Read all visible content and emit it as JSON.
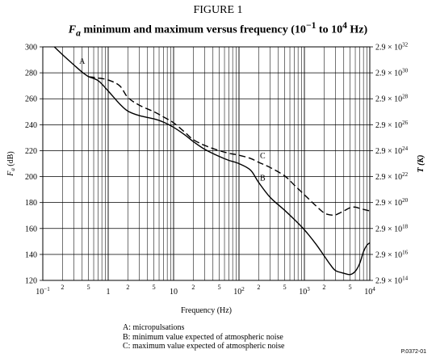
{
  "figure_label": "FIGURE 1",
  "title_parts": {
    "sym": "F",
    "sub": "a",
    "pre": " minimum and maximum versus frequency (10",
    "exp1": "−1",
    "mid": " to 10",
    "exp2": "4",
    "post": " Hz)"
  },
  "legend": [
    "A:  micropulsations",
    "B:  minimum value expected of atmospheric noise",
    "C:  maximum value expected of atmospheric noise"
  ],
  "reference": "P.0372-01",
  "chart_data": {
    "type": "line",
    "title": "Fa minimum and maximum versus frequency (10^-1 to 10^4 Hz)",
    "xlabel": "Frequency (Hz)",
    "ylabel_sym": "F",
    "ylabel_sub": "a",
    "ylabel_unit": " (dB)",
    "y2label": "T (K)",
    "x_scale": "log",
    "xlim": [
      0.1,
      10000
    ],
    "ylim": [
      120,
      300
    ],
    "grid": true,
    "x_major_ticks": [
      {
        "v": 0.1,
        "base": "10",
        "exp": "−1"
      },
      {
        "v": 1,
        "base": "1",
        "exp": ""
      },
      {
        "v": 10,
        "base": "10",
        "exp": ""
      },
      {
        "v": 100,
        "base": "10",
        "exp": "2"
      },
      {
        "v": 1000,
        "base": "10",
        "exp": "3"
      },
      {
        "v": 10000,
        "base": "10",
        "exp": "4"
      }
    ],
    "x_minor_labels": [
      "2",
      "5"
    ],
    "y_ticks": [
      120,
      140,
      160,
      180,
      200,
      220,
      240,
      260,
      280,
      300
    ],
    "y2_ticks": [
      {
        "at": 120,
        "exp": "14"
      },
      {
        "at": 140,
        "exp": "16"
      },
      {
        "at": 160,
        "exp": "18"
      },
      {
        "at": 180,
        "exp": "20"
      },
      {
        "at": 200,
        "exp": "22"
      },
      {
        "at": 220,
        "exp": "24"
      },
      {
        "at": 240,
        "exp": "26"
      },
      {
        "at": 260,
        "exp": "28"
      },
      {
        "at": 280,
        "exp": "30"
      },
      {
        "at": 300,
        "exp": "32"
      }
    ],
    "y2_mantissa": "2.9 × 10",
    "series": [
      {
        "name": "A",
        "style": "solid",
        "x": [
          0.15,
          0.2,
          0.3,
          0.4,
          0.5
        ],
        "y": [
          300,
          294,
          286,
          280.5,
          277
        ]
      },
      {
        "name": "B",
        "style": "solid",
        "x": [
          0.5,
          0.7,
          1,
          1.5,
          2,
          3,
          5,
          7,
          10,
          15,
          20,
          30,
          50,
          70,
          100,
          150,
          200,
          300,
          500,
          700,
          1000,
          1500,
          2000,
          2500,
          3000,
          4000,
          5000,
          6000,
          7000,
          8000,
          9000,
          10000
        ],
        "y": [
          277,
          274,
          266,
          256,
          250.5,
          247,
          244.5,
          242,
          238,
          232,
          227,
          221,
          215.5,
          212.5,
          210,
          205,
          195.5,
          184,
          174,
          167,
          159,
          148,
          139,
          132,
          127.5,
          125.5,
          124.5,
          127,
          133,
          142,
          147,
          149
        ]
      },
      {
        "name": "C",
        "style": "dashed",
        "x": [
          0.5,
          0.7,
          1,
          1.5,
          2,
          3,
          5,
          7,
          10,
          15,
          20,
          30,
          50,
          70,
          100,
          150,
          200,
          300,
          500,
          700,
          1000,
          1500,
          2000,
          2500,
          3000,
          4000,
          5000,
          6000,
          7000,
          10000
        ],
        "y": [
          277,
          276,
          274.5,
          270,
          261,
          255,
          250,
          246,
          241.5,
          234,
          228.5,
          224,
          220,
          218,
          216.5,
          214,
          211,
          207,
          200.5,
          193.5,
          186,
          177.5,
          172,
          170.5,
          170.5,
          173.5,
          176,
          176.5,
          175.5,
          173.5
        ]
      }
    ],
    "annotations": [
      {
        "text": "A",
        "x": 0.4,
        "y": 287
      },
      {
        "text": "B",
        "x": 230,
        "y": 197
      },
      {
        "text": "C",
        "x": 230,
        "y": 214
      }
    ]
  }
}
